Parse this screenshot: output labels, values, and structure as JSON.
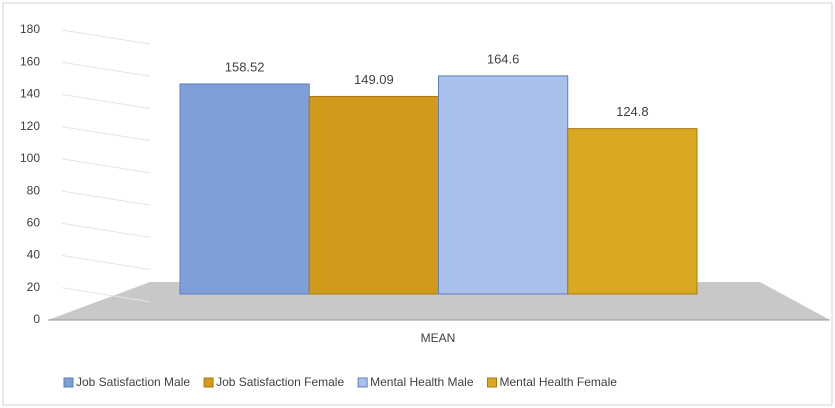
{
  "chart_data": {
    "type": "bar",
    "categories": [
      "MEAN"
    ],
    "series": [
      {
        "name": "Job Satisfaction Male",
        "color": "#7f9fd8",
        "values": [
          158.52
        ]
      },
      {
        "name": "Job Satisfaction Female",
        "color": "#d19a1c",
        "values": [
          149.09
        ]
      },
      {
        "name": "Mental Health Male",
        "color": "#a9c1ea",
        "values": [
          164.6
        ]
      },
      {
        "name": "Mental Health Female",
        "color": "#dba821",
        "values": [
          124.8
        ]
      }
    ],
    "ylim": [
      0,
      180
    ],
    "yticks": [
      0,
      20,
      40,
      60,
      80,
      100,
      120,
      140,
      160,
      180
    ],
    "grid": true,
    "legend": "bottom"
  }
}
